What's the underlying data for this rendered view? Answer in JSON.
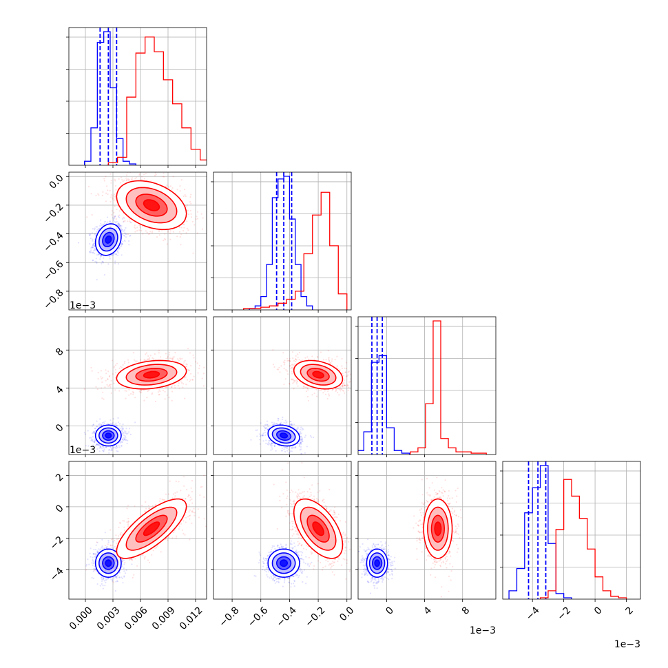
{
  "chart_data": {
    "type": "corner",
    "parameters": [
      {
        "range": [
          -0.0018,
          0.0132
        ],
        "ticks": [
          0.0,
          0.003,
          0.006,
          0.009,
          0.012
        ],
        "tick_labels": [
          "0.000",
          "0.003",
          "0.006",
          "0.009",
          "0.012"
        ],
        "offset_text": ""
      },
      {
        "range": [
          -0.93,
          0.03
        ],
        "ticks": [
          -0.8,
          -0.6,
          -0.4,
          -0.2,
          0.0
        ],
        "tick_labels": [
          "−0.8",
          "−0.6",
          "−0.4",
          "−0.2",
          "0.0"
        ],
        "offset_text": "1e−3"
      },
      {
        "range": [
          -3.0,
          11.5
        ],
        "ticks": [
          0,
          4,
          8
        ],
        "tick_labels": [
          "0",
          "4",
          "8"
        ],
        "offset_text": "1e−3"
      },
      {
        "range": [
          -5.9,
          2.9
        ],
        "ticks": [
          -4,
          -2,
          0,
          2
        ],
        "tick_labels": [
          "−4",
          "−2",
          "0",
          "2"
        ],
        "offset_text": "1e−3"
      }
    ],
    "series": [
      {
        "name": "",
        "color": "#0000ff",
        "means": [
          0.0025,
          -0.44,
          -1.0,
          -3.6
        ],
        "sds": [
          0.0007,
          0.055,
          0.55,
          0.45
        ],
        "quantiles": [
          [
            0.0016,
            0.0025,
            0.0034
          ],
          [
            -0.49,
            -0.44,
            -0.385
          ],
          [
            -1.55,
            -1.0,
            -0.45
          ],
          [
            -4.25,
            -3.65,
            -3.15
          ]
        ],
        "histograms": [
          {
            "edges": [
              -0.0001,
              0.0006,
              0.0013,
              0.002,
              0.0027,
              0.0034,
              0.0041,
              0.0048,
              0.0055
            ],
            "counts": [
              3,
              28,
              92,
              100,
              58,
              20,
              3,
              1
            ]
          },
          {
            "edges": [
              -0.68,
              -0.64,
              -0.6,
              -0.56,
              -0.52,
              -0.48,
              -0.44,
              -0.4,
              -0.36,
              -0.32,
              -0.28,
              -0.24
            ],
            "counts": [
              1,
              3,
              10,
              34,
              84,
              98,
              100,
              68,
              34,
              10,
              3
            ]
          },
          {
            "edges": [
              -3.2,
              -2.4,
              -1.6,
              -0.8,
              0.0,
              0.8,
              1.6,
              2.4
            ],
            "counts": [
              3,
              17,
              69,
              74,
              20,
              3,
              1
            ]
          },
          {
            "edges": [
              -5.5,
              -5.0,
              -4.5,
              -4.0,
              -3.5,
              -3.0,
              -2.5,
              -2.0,
              -1.5
            ],
            "counts": [
              6,
              22,
              62,
              80,
              96,
              40,
              4,
              1
            ]
          }
        ]
      },
      {
        "name": "",
        "color": "#ff0000",
        "means": [
          0.0072,
          -0.2,
          5.4,
          -1.4
        ],
        "sds": [
          0.0019,
          0.085,
          0.75,
          0.95
        ],
        "quantiles": [],
        "histograms": [
          {
            "edges": [
              0.0025,
              0.0035,
              0.0045,
              0.0055,
              0.0065,
              0.0075,
              0.0085,
              0.0095,
              0.0105,
              0.0115,
              0.0125,
              0.0135
            ],
            "counts": [
              2,
              6,
              51,
              84,
              96,
              85,
              64,
              46,
              28,
              12,
              4
            ]
          },
          {
            "edges": [
              -0.72,
              -0.66,
              -0.6,
              -0.54,
              -0.48,
              -0.42,
              -0.36,
              -0.3,
              -0.24,
              -0.18,
              -0.12,
              -0.06,
              0.0
            ],
            "counts": [
              1,
              1,
              2,
              3,
              5,
              8,
              14,
              42,
              71,
              88,
              48,
              12
            ]
          },
          {
            "edges": [
              2.5,
              3.3,
              4.1,
              4.9,
              5.7,
              6.5,
              7.3,
              8.1,
              8.9,
              9.7,
              10.5
            ],
            "counts": [
              2,
              5,
              38,
              100,
              12,
              5,
              2,
              2,
              1,
              1
            ]
          },
          {
            "edges": [
              -3.5,
              -3.0,
              -2.5,
              -2.0,
              -1.5,
              -1.0,
              -0.5,
              0.0,
              0.5,
              1.0,
              1.5,
              2.0
            ],
            "counts": [
              1,
              6,
              50,
              86,
              74,
              58,
              36,
              16,
              6,
              2,
              1
            ]
          }
        ]
      }
    ],
    "scatter_offdiagonal": true,
    "contours": true,
    "grid": true,
    "legend": "none"
  }
}
